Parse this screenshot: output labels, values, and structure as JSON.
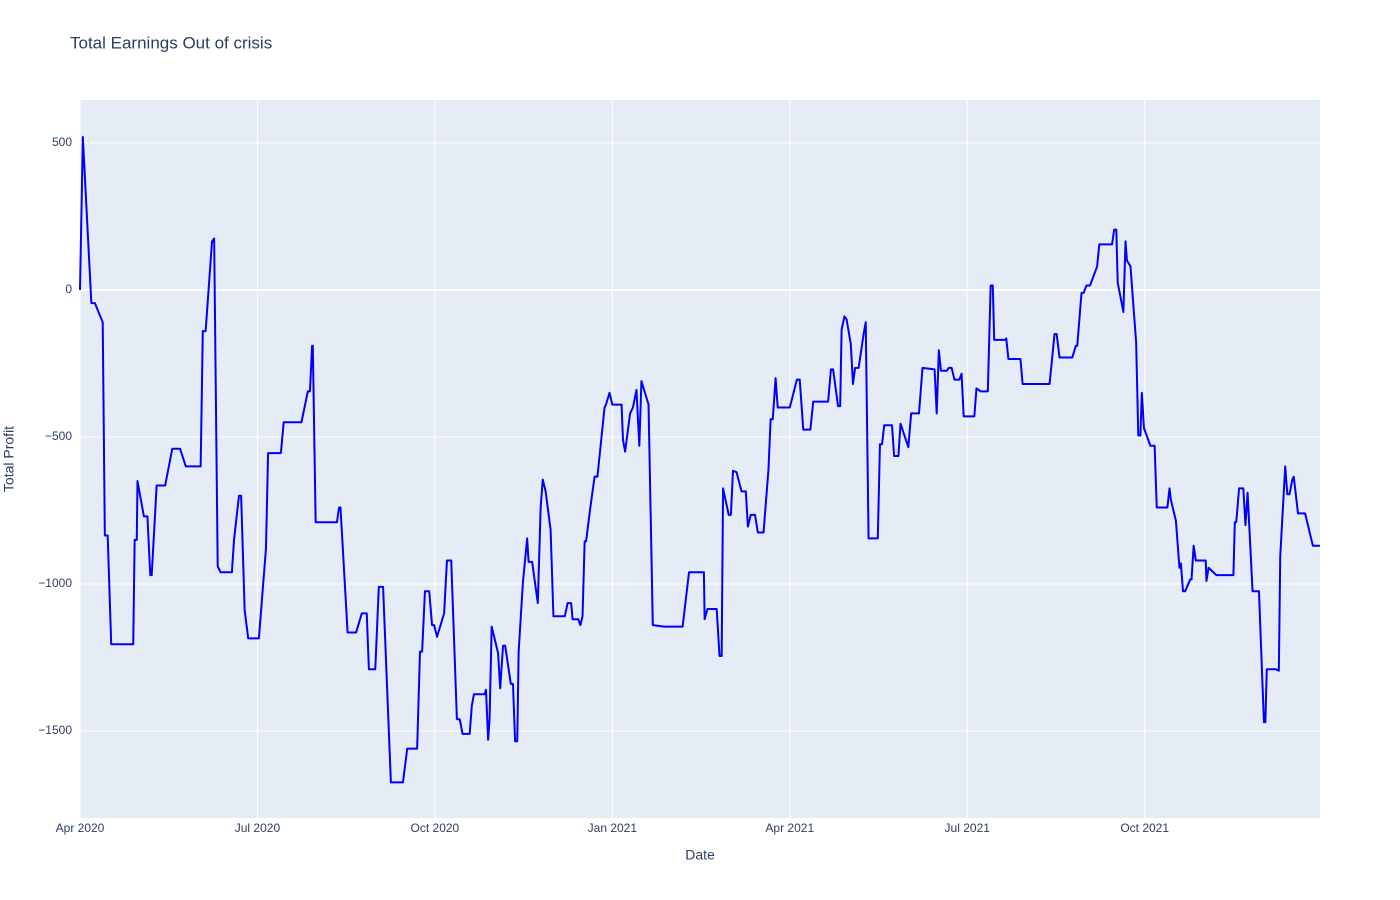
{
  "chart_data": {
    "type": "line",
    "title": "Total Earnings Out of crisis",
    "x_label": "Date",
    "y_label": "Total Profit",
    "color": "#0000ff",
    "grid": true,
    "xlim": [
      2020.25,
      2021.997
    ],
    "ylim": [
      -1796,
      646
    ],
    "xticks": [
      {
        "value": 2020.25,
        "label": "Apr 2020"
      },
      {
        "value": 2020.5,
        "label": "Jul 2020"
      },
      {
        "value": 2020.75,
        "label": "Oct 2020"
      },
      {
        "value": 2021,
        "label": "Jan 2021"
      },
      {
        "value": 2021.25,
        "label": "Apr 2021"
      },
      {
        "value": 2021.5,
        "label": "Jul 2021"
      },
      {
        "value": 2021.75,
        "label": "Oct 2021"
      }
    ],
    "yticks": [
      {
        "value": -1500,
        "label": "−1500"
      },
      {
        "value": -1000,
        "label": "−1000"
      },
      {
        "value": -500,
        "label": "−500"
      },
      0,
      500
    ],
    "x": [
      2020.25,
      2020.254,
      2020.266,
      2020.271,
      2020.282,
      2020.285,
      2020.289,
      2020.294,
      2020.325,
      2020.327,
      2020.33,
      2020.331,
      2020.34,
      2020.345,
      2020.349,
      2020.351,
      2020.358,
      2020.37,
      2020.38,
      2020.391,
      2020.399,
      2020.42,
      2020.423,
      2020.427,
      2020.436,
      2020.439,
      2020.444,
      2020.448,
      2020.464,
      2020.467,
      2020.474,
      2020.477,
      2020.482,
      2020.487,
      2020.502,
      2020.512,
      2020.515,
      2020.533,
      2020.537,
      2020.562,
      2020.571,
      2020.574,
      2020.577,
      2020.578,
      2020.582,
      2020.612,
      2020.615,
      2020.617,
      2020.627,
      2020.639,
      2020.647,
      2020.654,
      2020.657,
      2020.666,
      2020.671,
      2020.677,
      2020.688,
      2020.705,
      2020.711,
      2020.725,
      2020.729,
      2020.732,
      2020.736,
      2020.742,
      2020.746,
      2020.749,
      2020.753,
      2020.763,
      2020.767,
      2020.773,
      2020.781,
      2020.785,
      2020.789,
      2020.799,
      2020.802,
      2020.805,
      2020.82,
      2020.822,
      2020.825,
      2020.827,
      2020.83,
      2020.839,
      2020.842,
      2020.846,
      2020.849,
      2020.857,
      2020.86,
      2020.863,
      2020.866,
      2020.868,
      2020.874,
      2020.88,
      2020.882,
      2020.887,
      2020.895,
      2020.899,
      2020.902,
      2020.906,
      2020.913,
      2020.917,
      2020.933,
      2020.937,
      2020.942,
      2020.944,
      2020.952,
      2020.955,
      2020.958,
      2020.961,
      2020.963,
      2020.969,
      2020.975,
      2020.979,
      2020.989,
      2020.991,
      2020.996,
      2021.0,
      2021.013,
      2021.015,
      2021.018,
      2021.025,
      2021.029,
      2021.034,
      2021.038,
      2021.041,
      2021.051,
      2021.057,
      2021.073,
      2021.099,
      2021.108,
      2021.129,
      2021.13,
      2021.134,
      2021.147,
      2021.151,
      2021.154,
      2021.156,
      2021.164,
      2021.167,
      2021.17,
      2021.175,
      2021.182,
      2021.188,
      2021.191,
      2021.195,
      2021.201,
      2021.205,
      2021.213,
      2021.22,
      2021.223,
      2021.226,
      2021.23,
      2021.233,
      2021.25,
      2021.26,
      2021.264,
      2021.269,
      2021.279,
      2021.283,
      2021.304,
      2021.308,
      2021.311,
      2021.318,
      2021.321,
      2021.323,
      2021.327,
      2021.33,
      2021.336,
      2021.339,
      2021.342,
      2021.347,
      2021.354,
      2021.357,
      2021.361,
      2021.374,
      2021.377,
      2021.38,
      2021.383,
      2021.394,
      2021.397,
      2021.403,
      2021.406,
      2021.417,
      2021.421,
      2021.432,
      2021.437,
      2021.454,
      2021.457,
      2021.46,
      2021.463,
      2021.471,
      2021.474,
      2021.478,
      2021.482,
      2021.489,
      2021.492,
      2021.495,
      2021.51,
      2021.513,
      2021.519,
      2021.529,
      2021.533,
      2021.536,
      2021.538,
      2021.553,
      2021.555,
      2021.558,
      2021.575,
      2021.578,
      2021.616,
      2021.623,
      2021.626,
      2021.63,
      2021.648,
      2021.653,
      2021.655,
      2021.661,
      2021.664,
      2021.668,
      2021.673,
      2021.683,
      2021.686,
      2021.704,
      2021.707,
      2021.71,
      2021.712,
      2021.72,
      2021.723,
      2021.725,
      2021.73,
      2021.738,
      2021.741,
      2021.744,
      2021.746,
      2021.749,
      2021.758,
      2021.764,
      2021.767,
      2021.782,
      2021.785,
      2021.787,
      2021.794,
      2021.799,
      2021.801,
      2021.804,
      2021.807,
      2021.814,
      2021.816,
      2021.819,
      2021.822,
      2021.836,
      2021.837,
      2021.84,
      2021.851,
      2021.875,
      2021.877,
      2021.879,
      2021.883,
      2021.889,
      2021.892,
      2021.895,
      2021.902,
      2021.911,
      2021.918,
      2021.92,
      2021.922,
      2021.935,
      2021.939,
      2021.941,
      2021.948,
      2021.951,
      2021.954,
      2021.958,
      2021.96,
      2021.966,
      2021.976,
      2021.987,
      2021.997
    ],
    "values": [
      0,
      520,
      -45,
      -45,
      -110,
      -835,
      -835,
      -1205,
      -1205,
      -850,
      -850,
      -650,
      -770,
      -770,
      -970,
      -970,
      -665,
      -665,
      -540,
      -540,
      -600,
      -600,
      -140,
      -140,
      165,
      175,
      -940,
      -960,
      -960,
      -850,
      -700,
      -700,
      -1090,
      -1185,
      -1185,
      -880,
      -555,
      -555,
      -450,
      -450,
      -345,
      -345,
      -190,
      -190,
      -790,
      -790,
      -740,
      -740,
      -1165,
      -1165,
      -1100,
      -1100,
      -1290,
      -1290,
      -1010,
      -1010,
      -1675,
      -1675,
      -1560,
      -1560,
      -1230,
      -1230,
      -1025,
      -1025,
      -1140,
      -1140,
      -1180,
      -1100,
      -920,
      -920,
      -1460,
      -1460,
      -1510,
      -1510,
      -1415,
      -1375,
      -1375,
      -1360,
      -1530,
      -1460,
      -1145,
      -1235,
      -1355,
      -1210,
      -1210,
      -1340,
      -1340,
      -1535,
      -1535,
      -1230,
      -995,
      -845,
      -925,
      -925,
      -1065,
      -740,
      -645,
      -685,
      -815,
      -1110,
      -1110,
      -1065,
      -1065,
      -1120,
      -1120,
      -1140,
      -1110,
      -855,
      -855,
      -740,
      -635,
      -635,
      -400,
      -390,
      -350,
      -390,
      -390,
      -510,
      -550,
      -420,
      -400,
      -340,
      -530,
      -310,
      -390,
      -1140,
      -1145,
      -1145,
      -960,
      -960,
      -1120,
      -1085,
      -1085,
      -1245,
      -1245,
      -675,
      -765,
      -765,
      -615,
      -620,
      -685,
      -685,
      -805,
      -765,
      -765,
      -825,
      -825,
      -610,
      -440,
      -440,
      -300,
      -400,
      -400,
      -305,
      -305,
      -475,
      -475,
      -380,
      -380,
      -270,
      -270,
      -395,
      -395,
      -135,
      -90,
      -100,
      -185,
      -320,
      -265,
      -265,
      -150,
      -110,
      -845,
      -845,
      -525,
      -525,
      -460,
      -460,
      -565,
      -565,
      -455,
      -535,
      -420,
      -420,
      -265,
      -270,
      -420,
      -205,
      -275,
      -275,
      -265,
      -265,
      -305,
      -305,
      -285,
      -430,
      -430,
      -335,
      -345,
      -345,
      15,
      15,
      -170,
      -170,
      -165,
      -235,
      -235,
      -320,
      -320,
      -150,
      -150,
      -230,
      -230,
      -190,
      -190,
      -10,
      -10,
      15,
      15,
      80,
      155,
      155,
      205,
      205,
      25,
      -75,
      165,
      100,
      80,
      -180,
      -495,
      -495,
      -350,
      -470,
      -530,
      -530,
      -740,
      -740,
      -675,
      -715,
      -785,
      -945,
      -930,
      -1025,
      -1025,
      -985,
      -985,
      -870,
      -920,
      -920,
      -990,
      -945,
      -970,
      -970,
      -790,
      -790,
      -675,
      -675,
      -800,
      -690,
      -1025,
      -1025,
      -1470,
      -1470,
      -1290,
      -1290,
      -1295,
      -905,
      -600,
      -695,
      -695,
      -645,
      -635,
      -760,
      -760,
      -870,
      -870
    ]
  }
}
